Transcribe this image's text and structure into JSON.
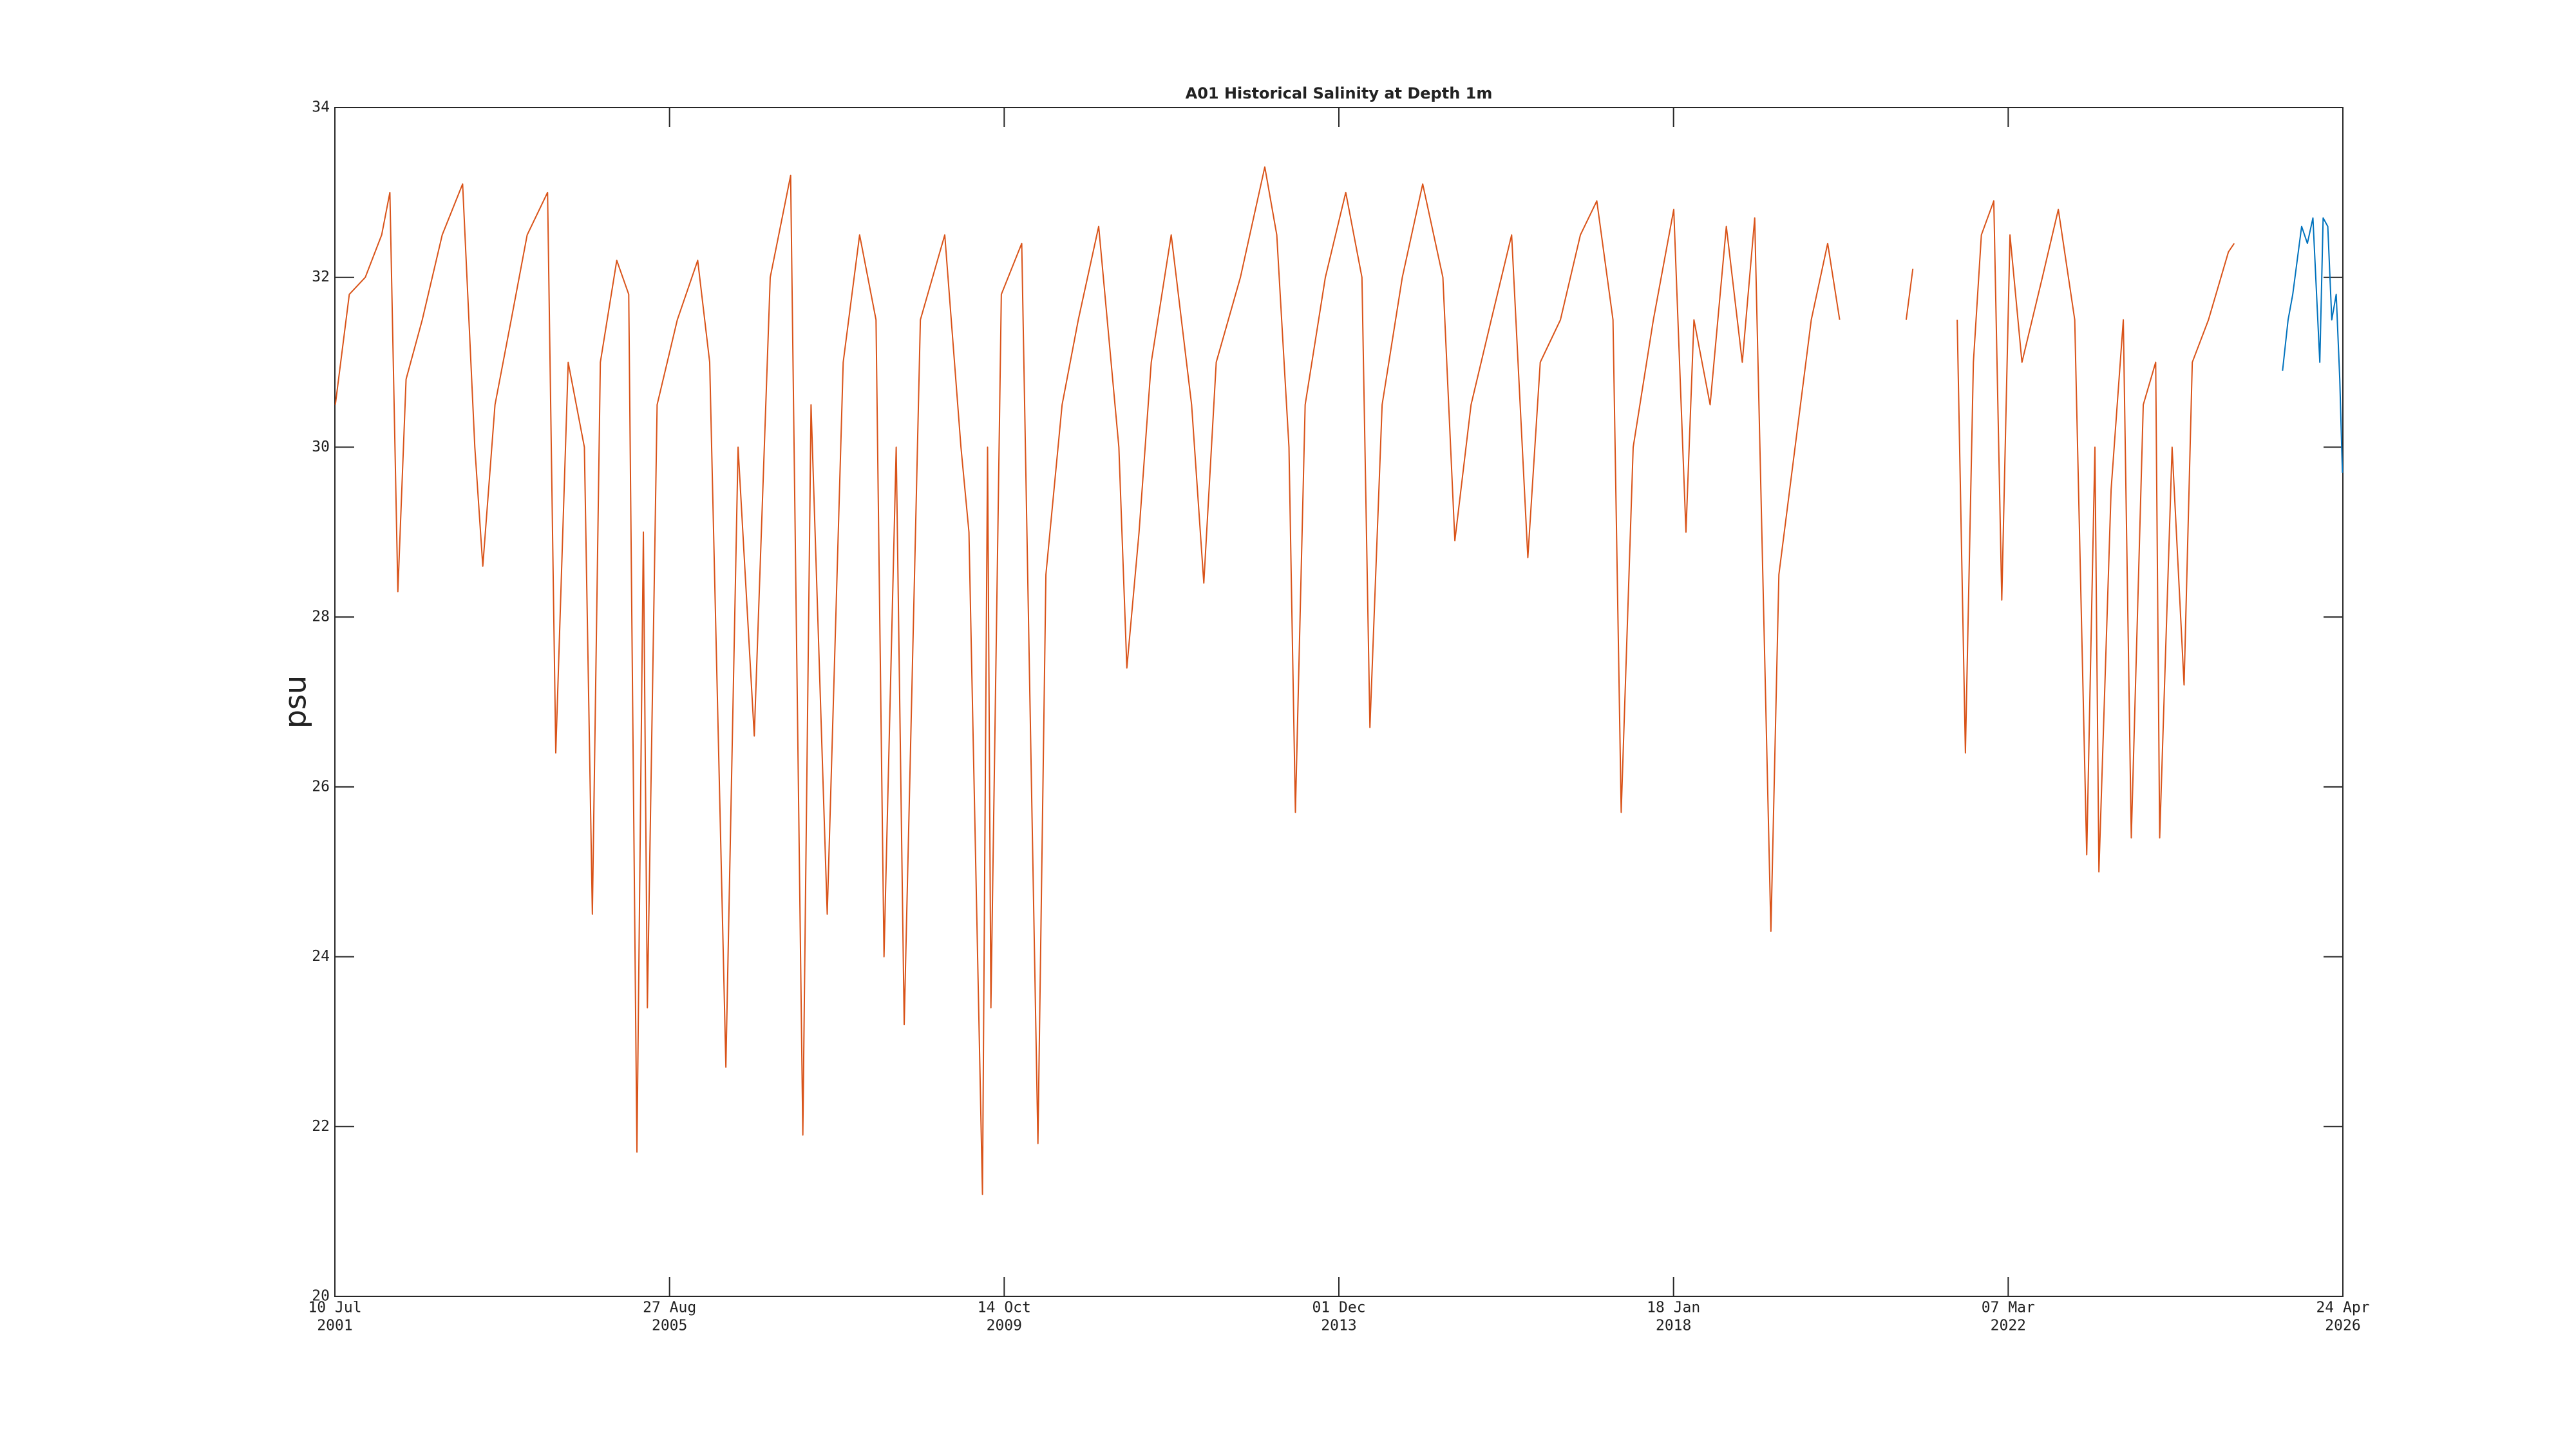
{
  "chart_data": {
    "type": "line",
    "title": "A01 Historical Salinity at Depth 1m",
    "ylabel": "psu",
    "xlim": [
      "2001-07-10",
      "2026-04-24"
    ],
    "xticks": [
      {
        "value": "2001-07-10",
        "label": [
          "10 Jul",
          "2001"
        ]
      },
      {
        "value": "2005-08-27",
        "label": [
          "27 Aug",
          "2005"
        ]
      },
      {
        "value": "2009-10-14",
        "label": [
          "14 Oct",
          "2009"
        ]
      },
      {
        "value": "2013-12-01",
        "label": [
          "01 Dec",
          "2013"
        ]
      },
      {
        "value": "2018-01-18",
        "label": [
          "18 Jan",
          "2018"
        ]
      },
      {
        "value": "2022-03-07",
        "label": [
          "07 Mar",
          "2022"
        ]
      },
      {
        "value": "2026-04-24",
        "label": [
          "24 Apr",
          "2026"
        ]
      }
    ],
    "ylim": [
      20,
      34
    ],
    "yticks": [
      20,
      22,
      24,
      26,
      28,
      30,
      32,
      34
    ],
    "grid": false,
    "series": [
      {
        "color": "#d95319",
        "x": [
          "2001-07-12",
          "2001-09-13",
          "2001-11-24",
          "2002-02-06",
          "2002-03-15",
          "2002-04-20",
          "2002-05-27",
          "2002-08-08",
          "2002-11-06",
          "2003-02-06",
          "2003-04-02",
          "2003-05-08",
          "2003-07-02",
          "2003-09-13",
          "2003-11-24",
          "2004-02-24",
          "2004-04-01",
          "2004-05-27",
          "2004-08-08",
          "2004-09-13",
          "2004-10-19",
          "2005-01-01",
          "2005-02-24",
          "2005-04-02",
          "2005-05-01",
          "2005-05-19",
          "2005-07-02",
          "2005-10-01",
          "2006-01-01",
          "2006-02-24",
          "2006-05-08",
          "2006-07-02",
          "2006-09-13",
          "2006-11-24",
          "2007-02-24",
          "2007-04-20",
          "2007-05-27",
          "2007-08-08",
          "2007-10-19",
          "2008-01-01",
          "2008-03-15",
          "2008-04-20",
          "2008-06-14",
          "2008-07-20",
          "2008-10-01",
          "2009-01-19",
          "2009-04-02",
          "2009-05-08",
          "2009-07-08",
          "2009-07-31",
          "2009-08-15",
          "2009-10-01",
          "2010-01-01",
          "2010-03-15",
          "2010-04-20",
          "2010-07-02",
          "2010-09-13",
          "2010-12-14",
          "2011-03-15",
          "2011-04-20",
          "2011-06-14",
          "2011-08-08",
          "2011-11-06",
          "2012-02-06",
          "2012-04-01",
          "2012-05-27",
          "2012-09-13",
          "2013-01-01",
          "2013-02-24",
          "2013-04-20",
          "2013-05-19",
          "2013-07-02",
          "2013-10-01",
          "2014-01-01",
          "2014-03-15",
          "2014-04-20",
          "2014-06-14",
          "2014-09-13",
          "2014-12-14",
          "2015-03-15",
          "2015-05-08",
          "2015-07-20",
          "2015-10-19",
          "2016-01-19",
          "2016-04-01",
          "2016-05-27",
          "2016-08-26",
          "2016-11-24",
          "2017-02-06",
          "2017-04-20",
          "2017-05-27",
          "2017-07-20",
          "2017-10-19",
          "2018-01-19",
          "2018-03-15",
          "2018-04-20",
          "2018-07-02",
          "2018-09-13",
          "2018-11-24",
          "2019-01-19",
          "2019-04-02",
          "2019-05-08",
          "2019-07-20",
          "2019-10-01",
          "2019-12-14",
          "2020-02-06",
          "2020-06-01",
          "2020-12-02",
          "2021-01-01",
          "2021-04-01",
          "2021-07-20",
          "2021-08-26",
          "2021-10-01",
          "2021-11-06",
          "2022-01-01",
          "2022-02-06",
          "2022-03-15",
          "2022-05-08",
          "2022-08-08",
          "2022-10-19",
          "2023-01-01",
          "2023-02-24",
          "2023-04-02",
          "2023-04-20",
          "2023-06-14",
          "2023-08-08",
          "2023-09-13",
          "2023-11-06",
          "2024-01-01",
          "2024-01-19",
          "2024-03-15",
          "2024-05-08",
          "2024-06-14",
          "2024-08-26",
          "2024-11-24",
          "2024-12-20"
        ],
        "values": [
          30.5,
          31.8,
          32.0,
          32.5,
          33.0,
          28.3,
          30.8,
          31.5,
          32.5,
          33.1,
          30.0,
          28.6,
          30.5,
          31.5,
          32.5,
          33.0,
          26.4,
          31.0,
          30.0,
          24.5,
          31.0,
          32.2,
          31.8,
          21.7,
          29.0,
          23.4,
          30.5,
          31.5,
          32.2,
          31.0,
          22.7,
          30.0,
          26.6,
          32.0,
          33.2,
          21.9,
          30.5,
          24.5,
          31.0,
          32.5,
          31.5,
          24.0,
          30.0,
          23.2,
          31.5,
          32.5,
          30.0,
          29.0,
          21.2,
          30.0,
          23.4,
          31.8,
          32.4,
          21.8,
          28.5,
          30.5,
          31.5,
          32.6,
          30.0,
          27.4,
          29.0,
          31.0,
          32.5,
          30.5,
          28.4,
          31.0,
          32.0,
          33.3,
          32.5,
          30.0,
          25.7,
          30.5,
          32.0,
          33.0,
          32.0,
          26.7,
          30.5,
          32.0,
          33.1,
          32.0,
          28.9,
          30.5,
          31.5,
          32.5,
          28.7,
          31.0,
          31.5,
          32.5,
          32.9,
          31.5,
          25.7,
          30.0,
          31.5,
          32.8,
          29.0,
          31.5,
          30.5,
          32.6,
          31.0,
          32.7,
          24.3,
          28.5,
          30.0,
          31.5,
          32.4,
          31.5,
          null,
          31.5,
          32.1,
          null,
          31.5,
          26.4,
          31.0,
          32.5,
          32.9,
          28.2,
          32.5,
          31.0,
          32.0,
          32.8,
          31.5,
          25.2,
          30.0,
          25.0,
          29.5,
          31.5,
          25.4,
          30.5,
          31.0,
          25.4,
          30.0,
          27.2,
          31.0,
          31.5,
          32.3,
          32.4
        ]
      },
      {
        "color": "#0072bd",
        "x": [
          "2025-07-26",
          "2025-08-20",
          "2025-09-10",
          "2025-10-05",
          "2025-10-20",
          "2025-11-15",
          "2025-12-10",
          "2026-01-10",
          "2026-01-25",
          "2026-02-15",
          "2026-03-05",
          "2026-03-25",
          "2026-04-10",
          "2026-04-22"
        ],
        "values": [
          30.9,
          31.5,
          31.8,
          32.3,
          32.6,
          32.4,
          32.7,
          31.0,
          32.7,
          32.6,
          31.5,
          31.8,
          30.8,
          29.7
        ]
      }
    ]
  }
}
